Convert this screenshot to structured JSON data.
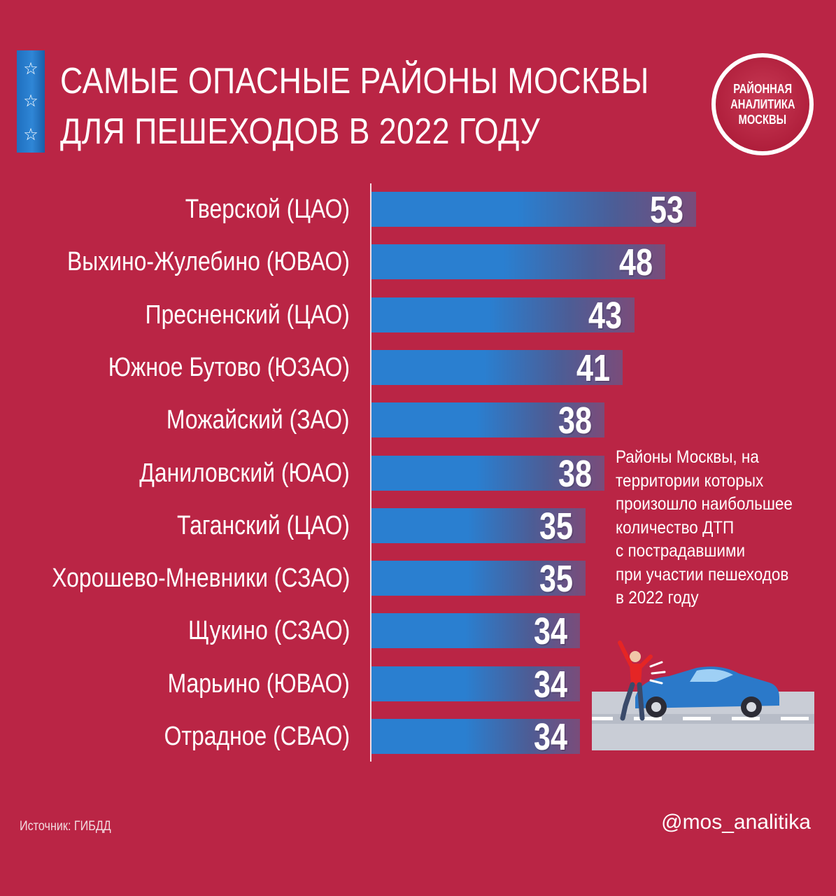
{
  "title": {
    "line1": "САМЫЕ ОПАСНЫЕ РАЙОНЫ МОСКВЫ",
    "line2": "ДЛЯ ПЕШЕХОДОВ В 2022 ГОДУ"
  },
  "logo": {
    "line1": "РАЙОННАЯ",
    "line2": "АНАЛИТИКА",
    "line3": "МОСКВЫ"
  },
  "note": {
    "lines": [
      "Районы Москвы, на",
      "территории которых",
      "произошло наибольшее",
      "количество ДТП",
      "с пострадавшими",
      "при участии пешеходов",
      "в 2022 году"
    ]
  },
  "footer": {
    "source": "Источник: ГИБДД",
    "handle": "@mos_analitika"
  },
  "colors": {
    "background": "#ba2545",
    "bar": "#2a7fd0",
    "text": "#ffffff"
  },
  "icons": {
    "stars": [
      "star-icon",
      "star-icon",
      "star-icon"
    ],
    "illustration": "pedestrian-car-accident-icon"
  },
  "chart_data": {
    "type": "bar",
    "orientation": "horizontal",
    "categories": [
      "Тверской (ЦАО)",
      "Выхино-Жулебино (ЮВАО)",
      "Пресненский (ЦАО)",
      "Южное Бутово (ЮЗАО)",
      "Можайский (ЗАО)",
      "Даниловский (ЮАО)",
      "Таганский (ЦАО)",
      "Хорошево-Мневники (СЗАО)",
      "Щукино (СЗАО)",
      "Марьино (ЮВАО)",
      "Отрадное (СВАО)"
    ],
    "values": [
      53,
      48,
      43,
      41,
      38,
      38,
      35,
      35,
      34,
      34,
      34
    ],
    "title": "САМЫЕ ОПАСНЫЕ РАЙОНЫ МОСКВЫ ДЛЯ ПЕШЕХОДОВ В 2022 ГОДУ",
    "xlabel": "",
    "ylabel": "",
    "xlim": [
      0,
      53
    ],
    "grid": false,
    "legend": "none"
  }
}
